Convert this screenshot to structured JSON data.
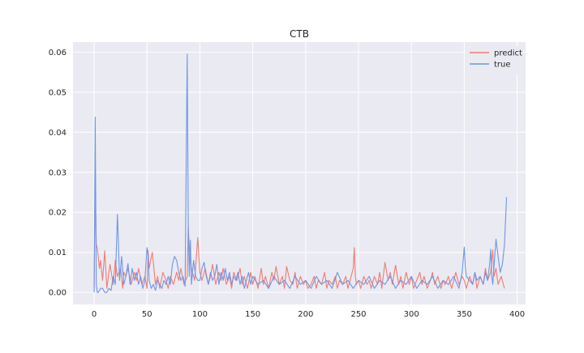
{
  "chart_data": {
    "type": "line",
    "title": "CTB",
    "xlabel": "",
    "ylabel": "",
    "xlim": [
      -20,
      408
    ],
    "ylim": [
      -0.003,
      0.0625
    ],
    "xticks": [
      0,
      50,
      100,
      150,
      200,
      250,
      300,
      350,
      400
    ],
    "yticks": [
      0.0,
      0.01,
      0.02,
      0.03,
      0.04,
      0.05,
      0.06
    ],
    "ytick_labels": [
      "0.00",
      "0.01",
      "0.02",
      "0.03",
      "0.04",
      "0.05",
      "0.06"
    ],
    "grid": true,
    "legend_position": "upper right",
    "series": [
      {
        "name": "predict",
        "color": "#f07c74",
        "x": [
          0,
          1,
          2,
          3,
          5,
          6,
          8,
          10,
          12,
          15,
          18,
          20,
          22,
          25,
          27,
          28,
          30,
          32,
          35,
          38,
          40,
          42,
          45,
          48,
          50,
          51,
          52,
          55,
          58,
          60,
          62,
          65,
          68,
          70,
          72,
          75,
          78,
          80,
          82,
          85,
          88,
          89,
          90,
          92,
          95,
          98,
          100,
          102,
          105,
          108,
          110,
          112,
          115,
          118,
          120,
          122,
          125,
          128,
          130,
          132,
          135,
          138,
          140,
          142,
          145,
          148,
          150,
          152,
          155,
          158,
          160,
          162,
          165,
          168,
          170,
          172,
          175,
          178,
          180,
          182,
          185,
          188,
          190,
          192,
          195,
          198,
          200,
          202,
          205,
          208,
          210,
          212,
          215,
          218,
          220,
          222,
          225,
          228,
          230,
          232,
          235,
          238,
          240,
          242,
          245,
          246,
          247,
          248,
          250,
          252,
          255,
          258,
          260,
          262,
          265,
          268,
          270,
          272,
          275,
          278,
          280,
          282,
          285,
          288,
          290,
          292,
          295,
          298,
          300,
          302,
          305,
          308,
          310,
          312,
          315,
          318,
          320,
          322,
          325,
          328,
          330,
          332,
          335,
          338,
          340,
          342,
          345,
          348,
          350,
          352,
          355,
          358,
          360,
          362,
          365,
          368,
          370,
          372,
          375,
          376,
          377,
          378,
          380,
          382,
          385,
          388
        ],
        "y": [
          0.001,
          0.0272,
          0.012,
          0.011,
          0.006,
          0.008,
          0.003,
          0.0104,
          0.001,
          0.007,
          0.002,
          0.008,
          0.004,
          0.006,
          0.001,
          0.005,
          0.004,
          0.006,
          0.002,
          0.005,
          0.003,
          0.006,
          0.002,
          0.004,
          0.001,
          0.0105,
          0.006,
          0.01,
          0.002,
          0.004,
          0.001,
          0.005,
          0.003,
          0.001,
          0.004,
          0.002,
          0.005,
          0.003,
          0.006,
          0.002,
          0.004,
          0.0165,
          0.011,
          0.006,
          0.003,
          0.0137,
          0.005,
          0.003,
          0.006,
          0.002,
          0.004,
          0.007,
          0.002,
          0.005,
          0.003,
          0.006,
          0.002,
          0.004,
          0.001,
          0.005,
          0.003,
          0.006,
          0.002,
          0.004,
          0.001,
          0.005,
          0.002,
          0.004,
          0.001,
          0.006,
          0.002,
          0.004,
          0.001,
          0.005,
          0.003,
          0.0065,
          0.002,
          0.004,
          0.001,
          0.0065,
          0.003,
          0.002,
          0.005,
          0.001,
          0.004,
          0.002,
          0.003,
          0.001,
          0.002,
          0.004,
          0.001,
          0.003,
          0.002,
          0.005,
          0.001,
          0.003,
          0.002,
          0.004,
          0.001,
          0.003,
          0.002,
          0.004,
          0.001,
          0.003,
          0.006,
          0.0112,
          0.004,
          0.002,
          0.003,
          0.001,
          0.004,
          0.002,
          0.003,
          0.001,
          0.004,
          0.002,
          0.005,
          0.001,
          0.0075,
          0.003,
          0.005,
          0.002,
          0.0068,
          0.002,
          0.004,
          0.001,
          0.005,
          0.002,
          0.004,
          0.001,
          0.003,
          0.005,
          0.002,
          0.004,
          0.001,
          0.003,
          0.005,
          0.002,
          0.004,
          0.001,
          0.003,
          0.002,
          0.004,
          0.001,
          0.003,
          0.005,
          0.002,
          0.004,
          0.003,
          0.001,
          0.004,
          0.002,
          0.005,
          0.001,
          0.004,
          0.002,
          0.006,
          0.003,
          0.005,
          0.0082,
          0.0106,
          0.004,
          0.006,
          0.002,
          0.004,
          0.001
        ]
      },
      {
        "name": "true",
        "color": "#6f96e4",
        "x": [
          0,
          1,
          2,
          3,
          4,
          6,
          8,
          10,
          12,
          14,
          16,
          18,
          20,
          22,
          23,
          24,
          26,
          28,
          30,
          32,
          34,
          36,
          38,
          40,
          42,
          44,
          46,
          48,
          50,
          51,
          52,
          54,
          56,
          58,
          60,
          62,
          64,
          66,
          68,
          70,
          72,
          74,
          76,
          78,
          80,
          82,
          84,
          86,
          88,
          89,
          90,
          91,
          92,
          94,
          96,
          98,
          100,
          102,
          104,
          106,
          108,
          110,
          112,
          114,
          116,
          118,
          120,
          122,
          124,
          126,
          128,
          130,
          132,
          134,
          136,
          138,
          140,
          142,
          144,
          146,
          148,
          150,
          155,
          160,
          165,
          170,
          175,
          180,
          185,
          190,
          195,
          200,
          205,
          210,
          215,
          220,
          225,
          230,
          235,
          240,
          245,
          250,
          255,
          260,
          265,
          270,
          275,
          280,
          285,
          290,
          295,
          300,
          305,
          310,
          315,
          320,
          325,
          330,
          335,
          340,
          345,
          348,
          350,
          351,
          352,
          355,
          358,
          360,
          362,
          365,
          368,
          370,
          372,
          374,
          375,
          376,
          377,
          378,
          380,
          382,
          384,
          386,
          388,
          390
        ],
        "y": [
          0.0,
          0.0438,
          0.002,
          0.0,
          0.0,
          0.001,
          0.001,
          0.0,
          0.0,
          0.001,
          0.0005,
          0.004,
          0.002,
          0.0195,
          0.012,
          0.003,
          0.009,
          0.002,
          0.004,
          0.0072,
          0.002,
          0.006,
          0.003,
          0.005,
          0.002,
          0.004,
          0.001,
          0.003,
          0.0112,
          0.009,
          0.003,
          0.001,
          0.002,
          0.0005,
          0.003,
          0.002,
          0.001,
          0.003,
          0.002,
          0.004,
          0.002,
          0.007,
          0.009,
          0.008,
          0.005,
          0.003,
          0.004,
          0.0015,
          0.0595,
          0.0163,
          0.004,
          0.013,
          0.002,
          0.008,
          0.004,
          0.003,
          0.003,
          0.006,
          0.0075,
          0.004,
          0.002,
          0.005,
          0.003,
          0.004,
          0.007,
          0.002,
          0.005,
          0.003,
          0.006,
          0.003,
          0.005,
          0.002,
          0.004,
          0.003,
          0.005,
          0.002,
          0.004,
          0.001,
          0.003,
          0.005,
          0.002,
          0.004,
          0.002,
          0.003,
          0.001,
          0.004,
          0.002,
          0.003,
          0.001,
          0.004,
          0.002,
          0.003,
          0.001,
          0.004,
          0.002,
          0.003,
          0.001,
          0.005,
          0.002,
          0.003,
          0.001,
          0.003,
          0.002,
          0.004,
          0.001,
          0.003,
          0.002,
          0.004,
          0.001,
          0.003,
          0.002,
          0.004,
          0.001,
          0.003,
          0.002,
          0.004,
          0.001,
          0.003,
          0.002,
          0.004,
          0.001,
          0.005,
          0.0113,
          0.006,
          0.004,
          0.003,
          0.002,
          0.005,
          0.003,
          0.004,
          0.002,
          0.005,
          0.003,
          0.007,
          0.0108,
          0.004,
          0.002,
          0.006,
          0.0133,
          0.009,
          0.005,
          0.007,
          0.0118,
          0.0238
        ]
      }
    ]
  }
}
